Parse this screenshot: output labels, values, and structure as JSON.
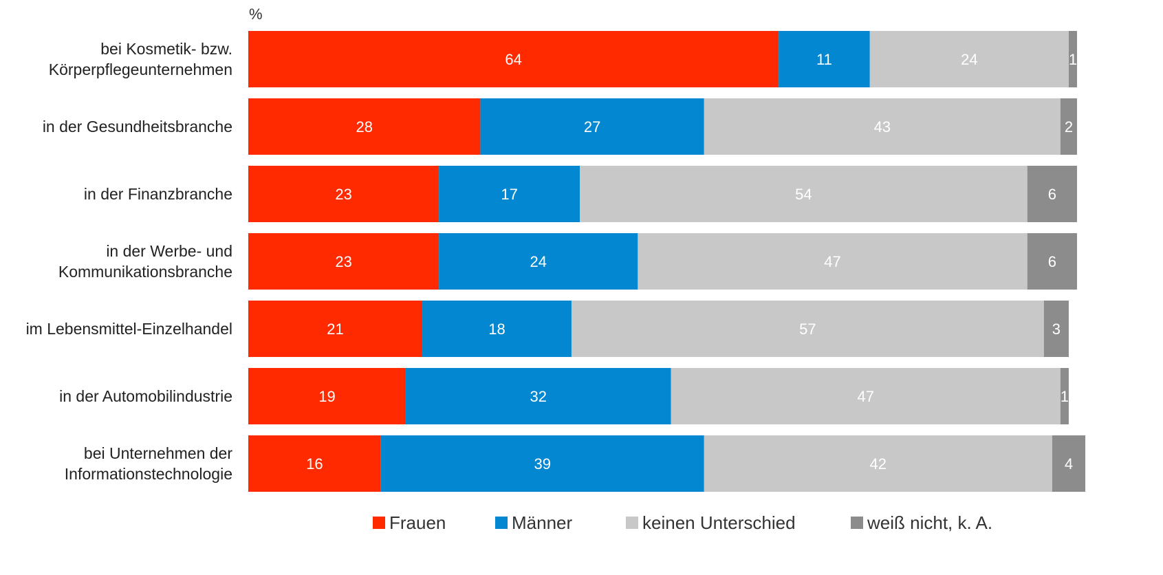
{
  "chart_data": {
    "type": "bar",
    "orientation": "horizontal",
    "stacked": true,
    "unit_label": "%",
    "categories": [
      [
        "bei Kosmetik- bzw.",
        "Körperpflegeunternehmen"
      ],
      [
        "in der Gesundheitsbranche"
      ],
      [
        "in der Finanzbranche"
      ],
      [
        "in der Werbe- und",
        "Kommunikationsbranche"
      ],
      [
        "im Lebensmittel-Einzelhandel"
      ],
      [
        "in der Automobilindustrie"
      ],
      [
        "bei Unternehmen der",
        "Informationstechnologie"
      ]
    ],
    "series": [
      {
        "name": "Frauen",
        "color": "#ff2a00",
        "label_color": "#ffffff",
        "values": [
          64,
          28,
          23,
          23,
          21,
          19,
          16
        ]
      },
      {
        "name": "Männer",
        "color": "#0287d0",
        "label_color": "#ffffff",
        "values": [
          11,
          27,
          17,
          24,
          18,
          32,
          39
        ]
      },
      {
        "name": "keinen Unterschied",
        "color": "#c8c8c8",
        "label_color": "#ffffff",
        "values": [
          24,
          43,
          54,
          47,
          57,
          47,
          42
        ]
      },
      {
        "name": "weiß nicht, k. A.",
        "color": "#8c8c8c",
        "label_color": "#ffffff",
        "values": [
          1,
          2,
          6,
          6,
          3,
          1,
          4
        ]
      }
    ],
    "xlim": [
      0,
      100
    ],
    "grid": false,
    "legend_position": "bottom"
  }
}
